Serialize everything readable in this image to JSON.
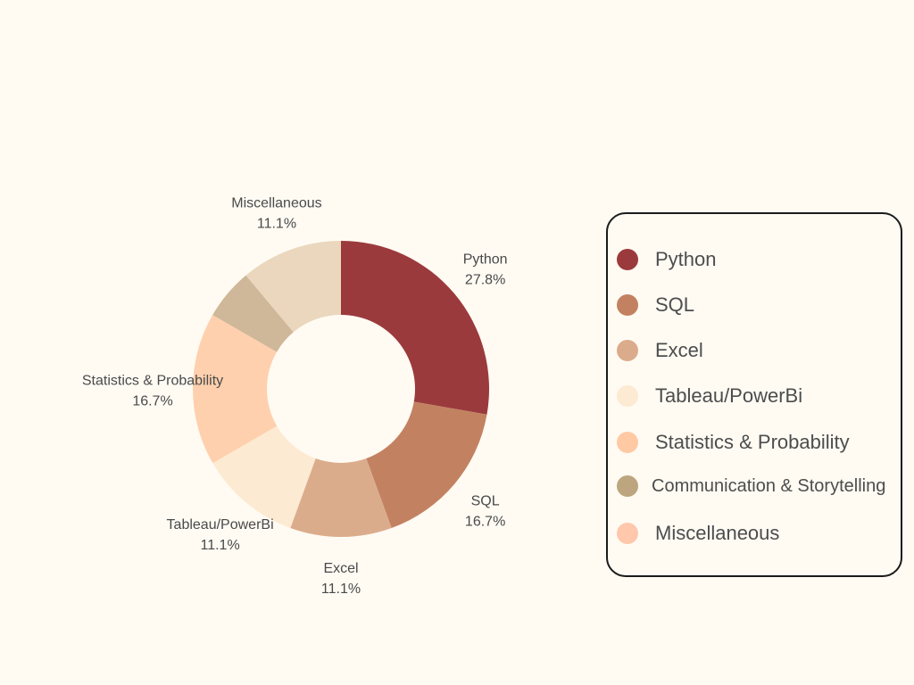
{
  "chart_data": {
    "type": "pie",
    "donut": true,
    "title": "",
    "categories": [
      "Python",
      "SQL",
      "Excel",
      "Tableau/PowerBi",
      "Statistics & Probability",
      "Communication & Storytelling",
      "Miscellaneous"
    ],
    "values": [
      27.8,
      16.7,
      11.1,
      11.1,
      16.7,
      5.6,
      11.1
    ],
    "value_labels": [
      "27.8%",
      "16.7%",
      "11.1%",
      "11.1%",
      "16.7%",
      "",
      "11.1%"
    ],
    "colors": [
      "#9b3a3c",
      "#c28261",
      "#dbac8c",
      "#fcead2",
      "#ffd0ad",
      "#cfb799",
      "#ead7bd"
    ],
    "legend": {
      "position": "right",
      "items": [
        {
          "label": "Python",
          "color": "#9b3a3c"
        },
        {
          "label": "SQL",
          "color": "#c28261"
        },
        {
          "label": "Excel",
          "color": "#dbac8c"
        },
        {
          "label": "Tableau/PowerBi",
          "color": "#fcead2"
        },
        {
          "label": "Statistics & Probability",
          "color": "#ffc9a4"
        },
        {
          "label": "Communication & Storytelling",
          "color": "#bda57f"
        },
        {
          "label": "Miscellaneous",
          "color": "#ffc7ac"
        }
      ]
    }
  }
}
